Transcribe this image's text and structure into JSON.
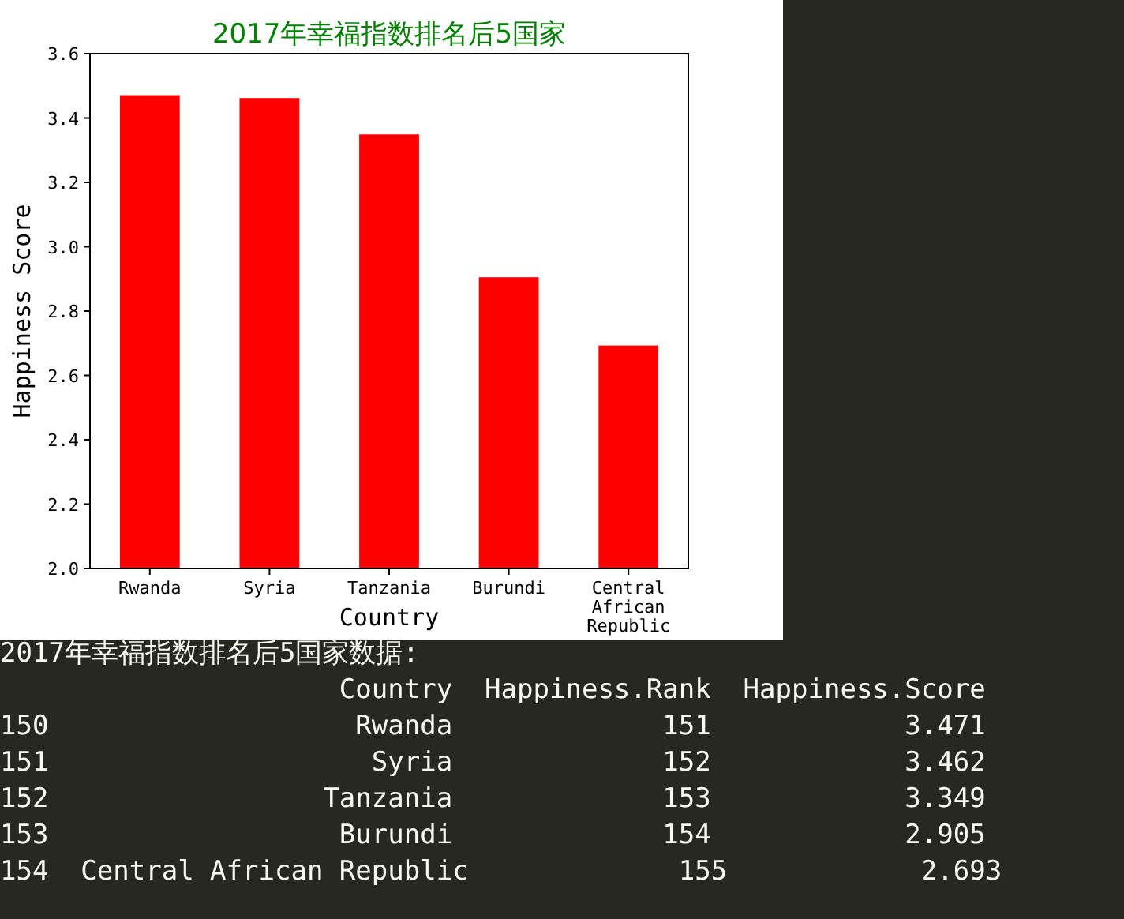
{
  "chart_data": {
    "type": "bar",
    "title": "2017年幸福指数排名后5国家",
    "xlabel": "Country",
    "ylabel": "Happiness Score",
    "categories": [
      "Rwanda",
      "Syria",
      "Tanzania",
      "Burundi",
      "Central African Republic"
    ],
    "values": [
      3.471,
      3.462,
      3.349,
      2.905,
      2.693
    ],
    "color": "#ff0000",
    "ylim": [
      2.0,
      3.6
    ],
    "yticks": [
      {
        "value": 2.0,
        "label": "2.0"
      },
      {
        "value": 2.2,
        "label": "2.2"
      },
      {
        "value": 2.4,
        "label": "2.4"
      },
      {
        "value": 2.6,
        "label": "2.6"
      },
      {
        "value": 2.8,
        "label": "2.8"
      },
      {
        "value": 3.0,
        "label": "3.0"
      },
      {
        "value": 3.2,
        "label": "3.2"
      },
      {
        "value": 3.4,
        "label": "3.4"
      },
      {
        "value": 3.6,
        "label": "3.6"
      }
    ],
    "annotations": [
      "2017年幸福指数排名后5国家数据:",
      "                     Country  Happiness.Rank  Happiness.Score",
      "150                   Rwanda             151            3.471",
      "151                    Syria             152            3.462",
      "152                 Tanzania             153            3.349",
      "153                  Burundi             154            2.905",
      "154  Central African Republic             155            2.693"
    ]
  }
}
